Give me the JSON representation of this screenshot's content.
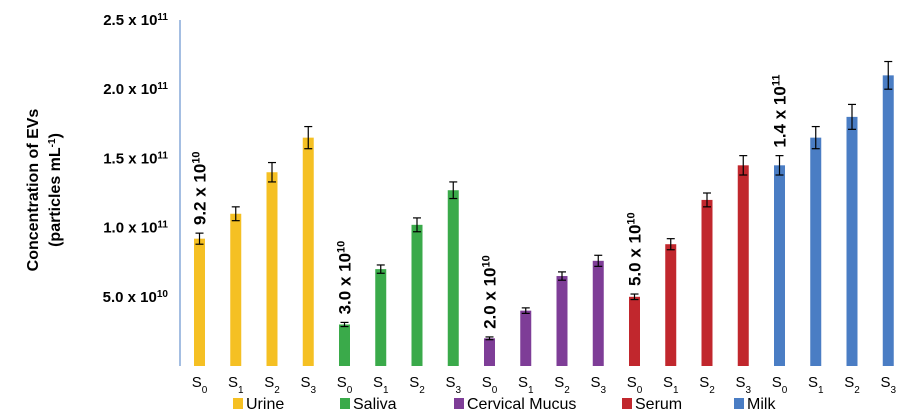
{
  "chart_data": {
    "type": "bar",
    "ylabel_line1": "Concentration of EVs",
    "ylabel_line2_prefix": "(particles mL",
    "ylabel_line2_sup": "-1",
    "ylabel_line2_suffix": ")",
    "ylim": [
      0,
      250000000000
    ],
    "yticks": [
      {
        "value": 50000000000,
        "mant": "5.0",
        "exp": "10"
      },
      {
        "value": 100000000000,
        "mant": "1.0",
        "exp": "11"
      },
      {
        "value": 150000000000,
        "mant": "1.5",
        "exp": "11"
      },
      {
        "value": 200000000000,
        "mant": "2.0",
        "exp": "11"
      },
      {
        "value": 250000000000,
        "mant": "2.5",
        "exp": "11"
      }
    ],
    "tick_times": " x 10",
    "groups": [
      {
        "name": "Urine",
        "color": "#F5C023",
        "categories": [
          {
            "base": "S",
            "sub": "0"
          },
          {
            "base": "S",
            "sub": "1"
          },
          {
            "base": "S",
            "sub": "2"
          },
          {
            "base": "S",
            "sub": "3"
          }
        ],
        "values": [
          92000000000,
          110000000000,
          140000000000,
          165000000000
        ],
        "errors": [
          4000000000,
          5000000000,
          7000000000,
          8000000000
        ],
        "annotation": {
          "mant": "9.2",
          "times": " x 10",
          "exp": "10"
        }
      },
      {
        "name": "Saliva",
        "color": "#3AAA4A",
        "categories": [
          {
            "base": "S",
            "sub": "0"
          },
          {
            "base": "S",
            "sub": "1"
          },
          {
            "base": "S",
            "sub": "2"
          },
          {
            "base": "S",
            "sub": "3"
          }
        ],
        "values": [
          30000000000,
          70000000000,
          102000000000,
          127000000000
        ],
        "errors": [
          1500000000,
          3000000000,
          5000000000,
          6000000000
        ],
        "annotation": {
          "mant": "3.0",
          "times": " x 10",
          "exp": "10"
        }
      },
      {
        "name": "Cervical Mucus",
        "color": "#7E3D97",
        "categories": [
          {
            "base": "S",
            "sub": "0"
          },
          {
            "base": "S",
            "sub": "1"
          },
          {
            "base": "S",
            "sub": "2"
          },
          {
            "base": "S",
            "sub": "3"
          }
        ],
        "values": [
          20000000000,
          40000000000,
          65000000000,
          76000000000
        ],
        "errors": [
          1000000000,
          2000000000,
          3000000000,
          4000000000
        ],
        "annotation": {
          "mant": "2.0",
          "times": " x 10",
          "exp": "10"
        }
      },
      {
        "name": "Serum",
        "color": "#C1272D",
        "categories": [
          {
            "base": "S",
            "sub": "0"
          },
          {
            "base": "S",
            "sub": "1"
          },
          {
            "base": "S",
            "sub": "2"
          },
          {
            "base": "S",
            "sub": "3"
          }
        ],
        "values": [
          50000000000,
          88000000000,
          120000000000,
          145000000000
        ],
        "errors": [
          2000000000,
          4000000000,
          5000000000,
          7000000000
        ],
        "annotation": {
          "mant": "5.0",
          "times": " x 10",
          "exp": "10"
        }
      },
      {
        "name": "Milk",
        "color": "#4A7DC4",
        "categories": [
          {
            "base": "S",
            "sub": "0"
          },
          {
            "base": "S",
            "sub": "1"
          },
          {
            "base": "S",
            "sub": "2"
          },
          {
            "base": "S",
            "sub": "3"
          }
        ],
        "values": [
          145000000000,
          165000000000,
          180000000000,
          210000000000
        ],
        "errors": [
          7000000000,
          8000000000,
          9000000000,
          10000000000
        ],
        "annotation": {
          "mant": "1.4",
          "times": " x 10",
          "exp": "11"
        }
      }
    ],
    "legend_placement": "bottom",
    "grid": false
  }
}
